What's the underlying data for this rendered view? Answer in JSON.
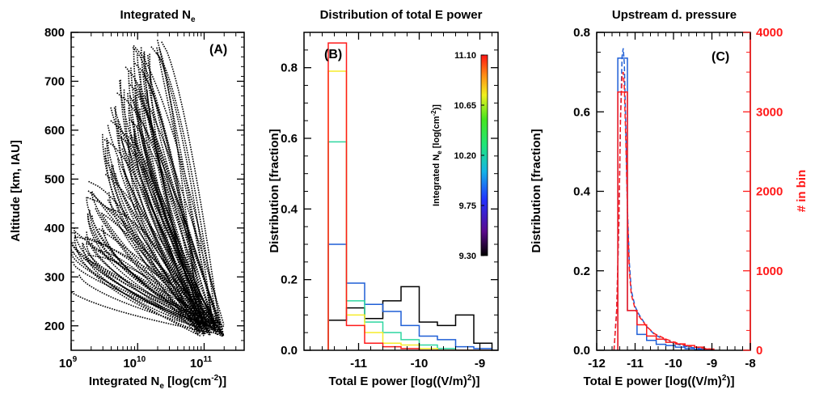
{
  "chart_data": [
    {
      "panel": "A",
      "type": "scatter",
      "title": "Integrated N",
      "title_sub": "e",
      "panel_label": "(A)",
      "xlabel": "Integrated N",
      "xlabel_sub": "e",
      "xlabel_tail": " [log(cm",
      "xlabel_sup": "-2",
      "xlabel_end": ")]",
      "ylabel": "Altitude [km, IAU]",
      "xscale": "log",
      "xlim": [
        1000000000.0,
        400000000000.0
      ],
      "ylim": [
        150,
        800
      ],
      "xtick_values": [
        1000000000.0,
        10000000000.0,
        100000000000.0
      ],
      "xtick_base": "10",
      "xtick_exponents": [
        "9",
        "10",
        "11"
      ],
      "yticks": [
        200,
        300,
        400,
        500,
        600,
        700,
        800
      ],
      "tracks": {
        "count": 110,
        "x_start_log_range": [
          9.0,
          10.2
        ],
        "x_end_log_range": [
          10.9,
          11.3
        ],
        "alt_top_range": [
          280,
          800
        ],
        "alt_bottom_range": [
          178,
          205
        ]
      },
      "marker_color": "#000000"
    },
    {
      "panel": "B",
      "type": "step",
      "title": "Distribution of total E power",
      "panel_label": "(B)",
      "xlabel": "Total E power [log((V/m)",
      "xlabel_sup": "2",
      "xlabel_end": ")]",
      "ylabel": "Distribution [fraction]",
      "xlim": [
        -11.9,
        -8.7
      ],
      "ylim": [
        0,
        0.9
      ],
      "xticks": [
        -11,
        -10,
        -9
      ],
      "yticks": [
        0.0,
        0.2,
        0.4,
        0.6,
        0.8
      ],
      "bin_edges": [
        -11.5,
        -11.2,
        -10.9,
        -10.6,
        -10.3,
        -10.0,
        -9.7,
        -9.4,
        -9.1,
        -8.8
      ],
      "series": [
        {
          "color": "#000000",
          "values": [
            0.085,
            0.12,
            0.09,
            0.14,
            0.18,
            0.08,
            0.07,
            0.1,
            0.02
          ]
        },
        {
          "color": "#1f5fd6",
          "values": [
            0.3,
            0.19,
            0.13,
            0.11,
            0.07,
            0.04,
            0.03,
            0.01,
            0.005
          ]
        },
        {
          "color": "#2ed6a0",
          "values": [
            0.59,
            0.14,
            0.08,
            0.05,
            0.03,
            0.015,
            0.005,
            0.0,
            0.0
          ]
        },
        {
          "color": "#f5ec2a",
          "values": [
            0.79,
            0.1,
            0.05,
            0.02,
            0.015,
            0.005,
            0.0,
            0.0,
            0.0
          ]
        },
        {
          "color": "#ff1a1a",
          "values": [
            0.87,
            0.07,
            0.02,
            0.01,
            0.005,
            0.0,
            0.0,
            0.0,
            0.0
          ]
        }
      ],
      "colorbar": {
        "label": "Integrated N",
        "label_sub": "e",
        "label_tail": " [log(cm",
        "label_sup": "-2",
        "label_end": ")]",
        "range": [
          9.3,
          11.1
        ],
        "ticks": [
          "9.30",
          "9.75",
          "10.20",
          "10.65",
          "11.10"
        ]
      }
    },
    {
      "panel": "C",
      "type": "step",
      "title": "Upstream d. pressure",
      "panel_label": "(C)",
      "xlabel": "Total E power [log((V/m)",
      "xlabel_sup": "2",
      "xlabel_end": ")]",
      "ylabel": "Distribution [fraction]",
      "ylabel_right": "# in bin",
      "xlim": [
        -12,
        -8
      ],
      "ylim": [
        0,
        0.8
      ],
      "ylim_right": [
        0,
        4000
      ],
      "xticks": [
        -12,
        -11,
        -10,
        -9,
        -8
      ],
      "yticks": [
        0.0,
        0.2,
        0.4,
        0.6,
        0.8
      ],
      "yticks_right": [
        0,
        1000,
        2000,
        3000,
        4000
      ],
      "bin_edges": [
        -11.45,
        -11.2,
        -10.95,
        -10.7,
        -10.45,
        -10.2,
        -9.95,
        -9.7,
        -9.45,
        -9.2,
        -8.95
      ],
      "series": [
        {
          "color": "#1f5fd6",
          "axis": "left",
          "values": [
            0.735,
            0.1,
            0.04,
            0.025,
            0.015,
            0.012,
            0.008,
            0.004,
            0.002,
            0.001
          ]
        },
        {
          "color": "#ff1a1a",
          "axis": "right",
          "values": [
            3250,
            500,
            320,
            180,
            140,
            100,
            80,
            60,
            40,
            15
          ]
        }
      ],
      "dashed_curves": [
        {
          "color": "#1f5fd6",
          "axis": "left",
          "x": [
            -11.55,
            -11.48,
            -11.42,
            -11.38,
            -11.34,
            -11.31,
            -11.28,
            -11.24,
            -11.2,
            -11.15,
            -11.1,
            -11.0,
            -10.9,
            -10.7,
            -10.5,
            -10.2,
            -9.9,
            -9.6,
            -9.3,
            -9.0
          ],
          "y": [
            0.0,
            0.1,
            0.32,
            0.58,
            0.74,
            0.76,
            0.72,
            0.55,
            0.36,
            0.22,
            0.15,
            0.11,
            0.09,
            0.06,
            0.04,
            0.025,
            0.015,
            0.008,
            0.004,
            0.002
          ]
        },
        {
          "color": "#ff1a1a",
          "axis": "right",
          "x": [
            -11.55,
            -11.48,
            -11.42,
            -11.38,
            -11.34,
            -11.31,
            -11.28,
            -11.24,
            -11.2,
            -11.15,
            -11.1,
            -11.0,
            -10.9,
            -10.7,
            -10.5,
            -10.2,
            -9.9,
            -9.6,
            -9.3,
            -9.0
          ],
          "y": [
            0,
            500,
            1650,
            2900,
            3450,
            3500,
            3300,
            2600,
            1750,
            1000,
            700,
            520,
            430,
            300,
            210,
            140,
            90,
            55,
            30,
            12
          ]
        }
      ]
    }
  ]
}
